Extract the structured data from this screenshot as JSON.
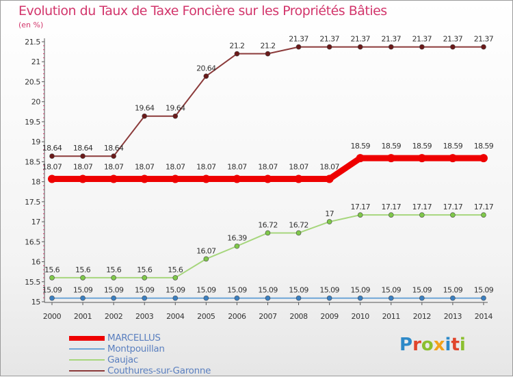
{
  "header": {
    "title": "Evolution du Taux de Taxe Foncière sur les Propriétés Bâties",
    "unit": "(en %)"
  },
  "logo": {
    "text": "Proxiti",
    "colors": [
      "#2d89c8",
      "#e0452c",
      "#8bbf2f",
      "#f2a21b",
      "#2d89c8",
      "#e0452c",
      "#8bbf2f"
    ]
  },
  "chart_data": {
    "type": "line",
    "title": "Evolution du Taux de Taxe Foncière sur les Propriétés Bâties",
    "ylabel": "(en %)",
    "xlabel": "",
    "x": [
      "2000",
      "2001",
      "2002",
      "2003",
      "2004",
      "2005",
      "2006",
      "2007",
      "2008",
      "2009",
      "2010",
      "2011",
      "2012",
      "2013",
      "2014"
    ],
    "ylim": [
      15,
      21.5
    ],
    "yticks": [
      "15",
      "15.5",
      "16",
      "16.5",
      "17",
      "17.5",
      "18",
      "18.5",
      "19",
      "19.5",
      "20",
      "20.5",
      "21",
      "21.5"
    ],
    "grid": false,
    "legend_position": "bottom-left",
    "series": [
      {
        "name": "MARCELLUS",
        "color": "#ee0000",
        "values": [
          18.07,
          18.07,
          18.07,
          18.07,
          18.07,
          18.07,
          18.07,
          18.07,
          18.07,
          18.07,
          18.59,
          18.59,
          18.59,
          18.59,
          18.59
        ],
        "labels": [
          "18.07",
          "18.07",
          "18.07",
          "18.07",
          "18.07",
          "18.07",
          "18.07",
          "18.07",
          "18.07",
          "18.07",
          "18.59",
          "18.59",
          "18.59",
          "18.59",
          "18.59"
        ]
      },
      {
        "name": "Montpouillan",
        "color": "#6ea6d7",
        "values": [
          15.09,
          15.09,
          15.09,
          15.09,
          15.09,
          15.09,
          15.09,
          15.09,
          15.09,
          15.09,
          15.09,
          15.09,
          15.09,
          15.09,
          15.09
        ],
        "labels": [
          "15.09",
          "15.09",
          "15.09",
          "15.09",
          "15.09",
          "15.09",
          "15.09",
          "15.09",
          "15.09",
          "15.09",
          "15.09",
          "15.09",
          "15.09",
          "15.09",
          "15.09"
        ]
      },
      {
        "name": "Gaujac",
        "color": "#a6d67c",
        "values": [
          15.6,
          15.6,
          15.6,
          15.6,
          15.6,
          16.07,
          16.39,
          16.72,
          16.72,
          17,
          17.17,
          17.17,
          17.17,
          17.17,
          17.17
        ],
        "labels": [
          "15.6",
          "15.6",
          "15.6",
          "15.6",
          "15.6",
          "16.07",
          "16.39",
          "16.72",
          "16.72",
          "17",
          "17.17",
          "17.17",
          "17.17",
          "17.17",
          "17.17"
        ]
      },
      {
        "name": "Couthures-sur-Garonne",
        "color": "#8b3a3a",
        "values": [
          18.64,
          18.64,
          18.64,
          19.64,
          19.64,
          20.64,
          21.2,
          21.2,
          21.37,
          21.37,
          21.37,
          21.37,
          21.37,
          21.37,
          21.37
        ],
        "labels": [
          "18.64",
          "18.64",
          "18.64",
          "19.64",
          "19.64",
          "20.64",
          "21.2",
          "21.2",
          "21.37",
          "21.37",
          "21.37",
          "21.37",
          "21.37",
          "21.37",
          "21.37"
        ]
      }
    ]
  }
}
